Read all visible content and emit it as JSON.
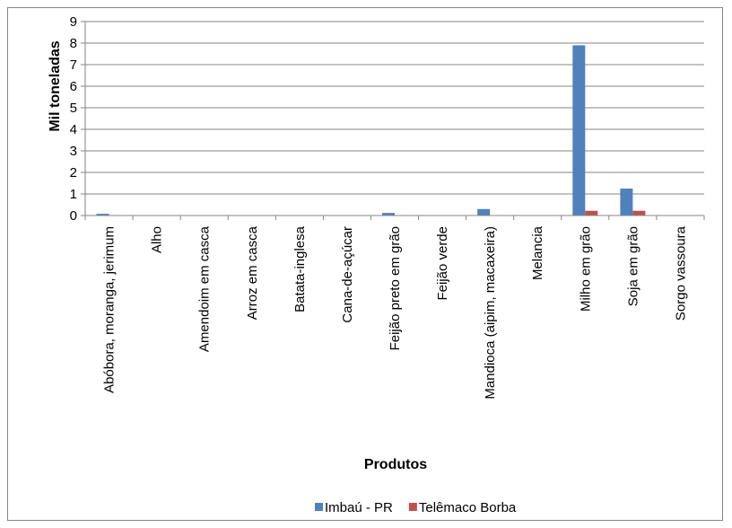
{
  "chart_data": {
    "type": "bar",
    "categories": [
      "Abóbora, moranga, jerimum",
      "Alho",
      "Amendoim em casca",
      "Arroz em casca",
      "Batata-inglesa",
      "Cana-de-açúcar",
      "Feijão preto em grão",
      "Feijão verde",
      "Mandioca (aipim, macaxeira)",
      "Melancia",
      "Milho em grão",
      "Soja em grão",
      "Sorgo vassoura"
    ],
    "series": [
      {
        "name": "Imbaú - PR",
        "color": "#4f81bd",
        "values": [
          0.08,
          0.01,
          0.01,
          0.01,
          0.01,
          0.01,
          0.12,
          0.01,
          0.3,
          0.01,
          7.9,
          1.25,
          0.02
        ]
      },
      {
        "name": "Telêmaco Borba",
        "color": "#c0504d",
        "values": [
          0.005,
          0.002,
          0.002,
          0.002,
          0.002,
          0.002,
          0.005,
          0.002,
          0.02,
          0.002,
          0.22,
          0.22,
          0.005
        ]
      }
    ],
    "xlabel": "Produtos",
    "ylabel": "Mil toneladas",
    "ylim": [
      0,
      9
    ],
    "yticks": [
      "0",
      "1",
      "2",
      "3",
      "4",
      "5",
      "6",
      "7",
      "8",
      "9"
    ],
    "grid": true,
    "legend": "bottom"
  }
}
